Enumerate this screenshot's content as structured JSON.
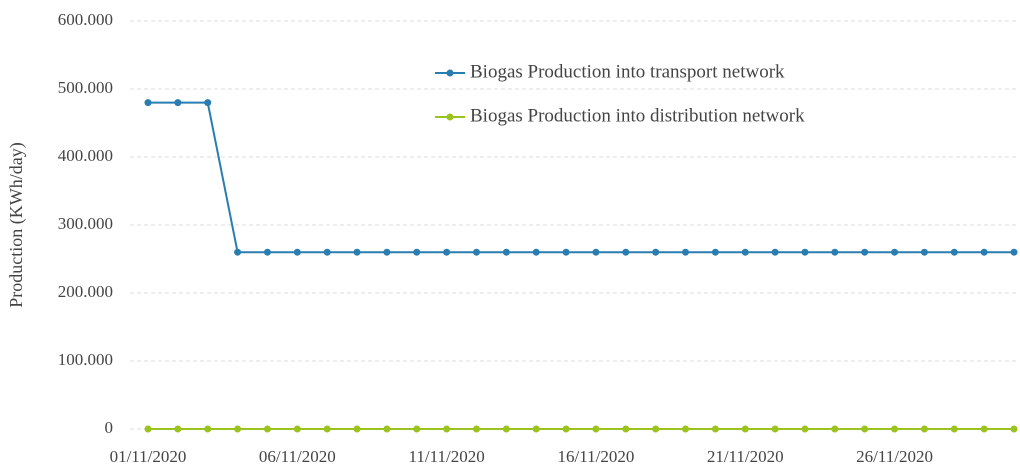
{
  "chart_data": {
    "type": "line",
    "ylabel": "Production (KWh/day)",
    "categories": [
      "01/11/2020",
      null,
      null,
      null,
      null,
      "06/11/2020",
      null,
      null,
      null,
      null,
      "11/11/2020",
      null,
      null,
      null,
      null,
      "16/11/2020",
      null,
      null,
      null,
      null,
      "21/11/2020",
      null,
      null,
      null,
      null,
      "26/11/2020",
      null,
      null,
      null,
      null
    ],
    "series": [
      {
        "name": "Biogas Production into transport network",
        "color": "#2a7db0",
        "values": [
          480000,
          480000,
          480000,
          260000,
          260000,
          260000,
          260000,
          260000,
          260000,
          260000,
          260000,
          260000,
          260000,
          260000,
          260000,
          260000,
          260000,
          260000,
          260000,
          260000,
          260000,
          260000,
          260000,
          260000,
          260000,
          260000,
          260000,
          260000,
          260000,
          260000
        ]
      },
      {
        "name": "Biogas Production into distribution network",
        "color": "#9bc31f",
        "values": [
          0,
          0,
          0,
          0,
          0,
          0,
          0,
          0,
          0,
          0,
          0,
          0,
          0,
          0,
          0,
          0,
          0,
          0,
          0,
          0,
          0,
          0,
          0,
          0,
          0,
          0,
          0,
          0,
          0,
          0
        ]
      }
    ],
    "ylim": [
      0,
      600000
    ],
    "yticks": [
      0,
      {
        "value": 100000,
        "label": "100.000"
      },
      {
        "value": 200000,
        "label": "200.000"
      },
      {
        "value": 300000,
        "label": "300.000"
      },
      {
        "value": 400000,
        "label": "400.000"
      },
      {
        "value": 500000,
        "label": "500.000"
      },
      {
        "value": 600000,
        "label": "600.000"
      }
    ],
    "grid": true
  }
}
